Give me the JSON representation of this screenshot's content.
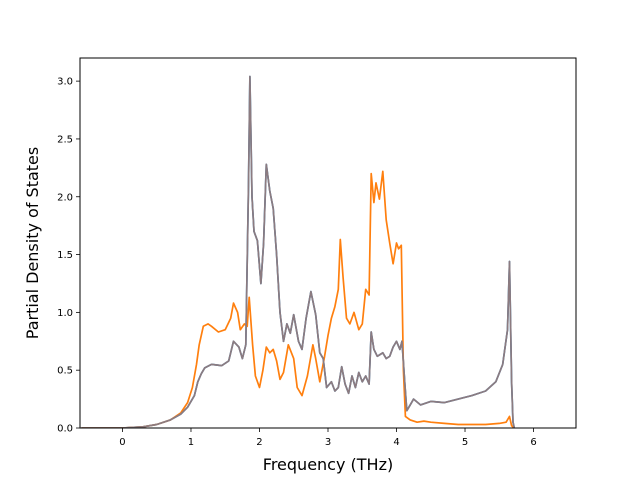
{
  "chart_data": {
    "type": "line",
    "title": "",
    "xlabel": "Frequency (THz)",
    "ylabel": "Partial Density of States",
    "xlim": [
      -0.62,
      6.62
    ],
    "ylim": [
      0.0,
      3.2
    ],
    "xticks": [
      0,
      1,
      2,
      3,
      4,
      5,
      6
    ],
    "xtick_labels": [
      "0",
      "1",
      "2",
      "3",
      "4",
      "5",
      "6"
    ],
    "yticks": [
      0.0,
      0.5,
      1.0,
      1.5,
      2.0,
      2.5,
      3.0
    ],
    "ytick_labels": [
      "0.0",
      "0.5",
      "1.0",
      "1.5",
      "2.0",
      "2.5",
      "3.0"
    ],
    "grid": false,
    "legend": "none",
    "series": [
      {
        "color": "#1f77b4",
        "points": [
          [
            -0.6,
            0
          ],
          [
            0,
            0
          ],
          [
            0.3,
            0.01
          ],
          [
            0.5,
            0.03
          ],
          [
            0.7,
            0.07
          ],
          [
            0.85,
            0.12
          ],
          [
            0.95,
            0.18
          ],
          [
            1.05,
            0.28
          ],
          [
            1.1,
            0.4
          ],
          [
            1.15,
            0.47
          ],
          [
            1.2,
            0.52
          ],
          [
            1.3,
            0.55
          ],
          [
            1.45,
            0.54
          ],
          [
            1.55,
            0.58
          ],
          [
            1.62,
            0.75
          ],
          [
            1.7,
            0.7
          ],
          [
            1.75,
            0.6
          ],
          [
            1.8,
            0.72
          ],
          [
            1.84,
            2.1
          ],
          [
            1.86,
            3.04
          ],
          [
            1.89,
            2.0
          ],
          [
            1.92,
            1.7
          ],
          [
            1.97,
            1.62
          ],
          [
            2.02,
            1.25
          ],
          [
            2.06,
            1.6
          ],
          [
            2.1,
            2.28
          ],
          [
            2.15,
            2.05
          ],
          [
            2.2,
            1.9
          ],
          [
            2.25,
            1.5
          ],
          [
            2.3,
            1.0
          ],
          [
            2.35,
            0.75
          ],
          [
            2.4,
            0.9
          ],
          [
            2.45,
            0.82
          ],
          [
            2.5,
            0.98
          ],
          [
            2.57,
            0.75
          ],
          [
            2.62,
            0.68
          ],
          [
            2.68,
            0.95
          ],
          [
            2.75,
            1.18
          ],
          [
            2.82,
            0.98
          ],
          [
            2.88,
            0.65
          ],
          [
            2.93,
            0.6
          ],
          [
            2.98,
            0.35
          ],
          [
            3.05,
            0.4
          ],
          [
            3.1,
            0.32
          ],
          [
            3.15,
            0.35
          ],
          [
            3.2,
            0.53
          ],
          [
            3.25,
            0.38
          ],
          [
            3.3,
            0.3
          ],
          [
            3.35,
            0.45
          ],
          [
            3.4,
            0.35
          ],
          [
            3.45,
            0.48
          ],
          [
            3.5,
            0.4
          ],
          [
            3.55,
            0.45
          ],
          [
            3.6,
            0.38
          ],
          [
            3.63,
            0.83
          ],
          [
            3.67,
            0.68
          ],
          [
            3.72,
            0.62
          ],
          [
            3.8,
            0.65
          ],
          [
            3.85,
            0.6
          ],
          [
            3.9,
            0.62
          ],
          [
            3.95,
            0.7
          ],
          [
            4.0,
            0.75
          ],
          [
            4.05,
            0.68
          ],
          [
            4.08,
            0.75
          ],
          [
            4.12,
            0.4
          ],
          [
            4.15,
            0.15
          ],
          [
            4.2,
            0.2
          ],
          [
            4.25,
            0.25
          ],
          [
            4.35,
            0.2
          ],
          [
            4.5,
            0.23
          ],
          [
            4.7,
            0.22
          ],
          [
            4.9,
            0.25
          ],
          [
            5.1,
            0.28
          ],
          [
            5.3,
            0.32
          ],
          [
            5.45,
            0.4
          ],
          [
            5.55,
            0.55
          ],
          [
            5.62,
            0.85
          ],
          [
            5.65,
            1.44
          ],
          [
            5.68,
            0.4
          ],
          [
            5.7,
            0.05
          ],
          [
            5.72,
            0
          ]
        ]
      },
      {
        "color": "#ff7f0e",
        "points": [
          [
            -0.6,
            0
          ],
          [
            0,
            0
          ],
          [
            0.3,
            0.01
          ],
          [
            0.5,
            0.03
          ],
          [
            0.7,
            0.07
          ],
          [
            0.85,
            0.13
          ],
          [
            0.95,
            0.22
          ],
          [
            1.02,
            0.35
          ],
          [
            1.08,
            0.55
          ],
          [
            1.12,
            0.72
          ],
          [
            1.18,
            0.88
          ],
          [
            1.25,
            0.9
          ],
          [
            1.3,
            0.88
          ],
          [
            1.4,
            0.83
          ],
          [
            1.5,
            0.85
          ],
          [
            1.58,
            0.95
          ],
          [
            1.62,
            1.08
          ],
          [
            1.68,
            1.0
          ],
          [
            1.72,
            0.85
          ],
          [
            1.78,
            0.9
          ],
          [
            1.82,
            0.88
          ],
          [
            1.85,
            1.13
          ],
          [
            1.9,
            0.72
          ],
          [
            1.94,
            0.45
          ],
          [
            2.0,
            0.35
          ],
          [
            2.05,
            0.5
          ],
          [
            2.1,
            0.7
          ],
          [
            2.15,
            0.65
          ],
          [
            2.2,
            0.68
          ],
          [
            2.25,
            0.58
          ],
          [
            2.3,
            0.42
          ],
          [
            2.35,
            0.48
          ],
          [
            2.42,
            0.72
          ],
          [
            2.5,
            0.6
          ],
          [
            2.55,
            0.35
          ],
          [
            2.62,
            0.28
          ],
          [
            2.7,
            0.45
          ],
          [
            2.78,
            0.72
          ],
          [
            2.82,
            0.6
          ],
          [
            2.88,
            0.4
          ],
          [
            2.95,
            0.62
          ],
          [
            3.0,
            0.8
          ],
          [
            3.05,
            0.95
          ],
          [
            3.1,
            1.05
          ],
          [
            3.15,
            1.2
          ],
          [
            3.18,
            1.63
          ],
          [
            3.22,
            1.3
          ],
          [
            3.27,
            0.95
          ],
          [
            3.32,
            0.9
          ],
          [
            3.38,
            1.0
          ],
          [
            3.45,
            0.85
          ],
          [
            3.5,
            0.9
          ],
          [
            3.55,
            1.2
          ],
          [
            3.6,
            1.15
          ],
          [
            3.63,
            2.2
          ],
          [
            3.67,
            1.95
          ],
          [
            3.7,
            2.12
          ],
          [
            3.75,
            1.98
          ],
          [
            3.8,
            2.22
          ],
          [
            3.85,
            1.8
          ],
          [
            3.9,
            1.6
          ],
          [
            3.95,
            1.42
          ],
          [
            4.0,
            1.6
          ],
          [
            4.03,
            1.55
          ],
          [
            4.07,
            1.58
          ],
          [
            4.1,
            0.5
          ],
          [
            4.13,
            0.1
          ],
          [
            4.2,
            0.07
          ],
          [
            4.3,
            0.05
          ],
          [
            4.4,
            0.06
          ],
          [
            4.5,
            0.05
          ],
          [
            4.7,
            0.04
          ],
          [
            4.9,
            0.03
          ],
          [
            5.1,
            0.03
          ],
          [
            5.3,
            0.03
          ],
          [
            5.5,
            0.04
          ],
          [
            5.6,
            0.05
          ],
          [
            5.65,
            0.1
          ],
          [
            5.68,
            0.02
          ],
          [
            5.72,
            0
          ]
        ]
      },
      {
        "color": "#8c7b80",
        "points": [
          [
            -0.6,
            0
          ],
          [
            0,
            0
          ],
          [
            0.3,
            0.01
          ],
          [
            0.5,
            0.03
          ],
          [
            0.7,
            0.07
          ],
          [
            0.85,
            0.12
          ],
          [
            0.95,
            0.18
          ],
          [
            1.05,
            0.28
          ],
          [
            1.1,
            0.4
          ],
          [
            1.15,
            0.47
          ],
          [
            1.2,
            0.52
          ],
          [
            1.3,
            0.55
          ],
          [
            1.45,
            0.54
          ],
          [
            1.55,
            0.58
          ],
          [
            1.62,
            0.75
          ],
          [
            1.7,
            0.7
          ],
          [
            1.75,
            0.6
          ],
          [
            1.8,
            0.72
          ],
          [
            1.84,
            2.1
          ],
          [
            1.86,
            3.04
          ],
          [
            1.89,
            2.0
          ],
          [
            1.92,
            1.7
          ],
          [
            1.97,
            1.62
          ],
          [
            2.02,
            1.25
          ],
          [
            2.06,
            1.6
          ],
          [
            2.1,
            2.28
          ],
          [
            2.15,
            2.05
          ],
          [
            2.2,
            1.9
          ],
          [
            2.25,
            1.5
          ],
          [
            2.3,
            1.0
          ],
          [
            2.35,
            0.75
          ],
          [
            2.4,
            0.9
          ],
          [
            2.45,
            0.82
          ],
          [
            2.5,
            0.98
          ],
          [
            2.57,
            0.75
          ],
          [
            2.62,
            0.68
          ],
          [
            2.68,
            0.95
          ],
          [
            2.75,
            1.18
          ],
          [
            2.82,
            0.98
          ],
          [
            2.88,
            0.65
          ],
          [
            2.93,
            0.6
          ],
          [
            2.98,
            0.35
          ],
          [
            3.05,
            0.4
          ],
          [
            3.1,
            0.32
          ],
          [
            3.15,
            0.35
          ],
          [
            3.2,
            0.53
          ],
          [
            3.25,
            0.38
          ],
          [
            3.3,
            0.3
          ],
          [
            3.35,
            0.45
          ],
          [
            3.4,
            0.35
          ],
          [
            3.45,
            0.48
          ],
          [
            3.5,
            0.4
          ],
          [
            3.55,
            0.45
          ],
          [
            3.6,
            0.38
          ],
          [
            3.63,
            0.83
          ],
          [
            3.67,
            0.68
          ],
          [
            3.72,
            0.62
          ],
          [
            3.8,
            0.65
          ],
          [
            3.85,
            0.6
          ],
          [
            3.9,
            0.62
          ],
          [
            3.95,
            0.7
          ],
          [
            4.0,
            0.75
          ],
          [
            4.05,
            0.68
          ],
          [
            4.08,
            0.75
          ],
          [
            4.12,
            0.4
          ],
          [
            4.15,
            0.15
          ],
          [
            4.2,
            0.2
          ],
          [
            4.25,
            0.25
          ],
          [
            4.35,
            0.2
          ],
          [
            4.5,
            0.23
          ],
          [
            4.7,
            0.22
          ],
          [
            4.9,
            0.25
          ],
          [
            5.1,
            0.28
          ],
          [
            5.3,
            0.32
          ],
          [
            5.45,
            0.4
          ],
          [
            5.55,
            0.55
          ],
          [
            5.62,
            0.85
          ],
          [
            5.65,
            1.44
          ],
          [
            5.68,
            0.4
          ],
          [
            5.7,
            0.05
          ],
          [
            5.72,
            0
          ]
        ]
      }
    ]
  }
}
